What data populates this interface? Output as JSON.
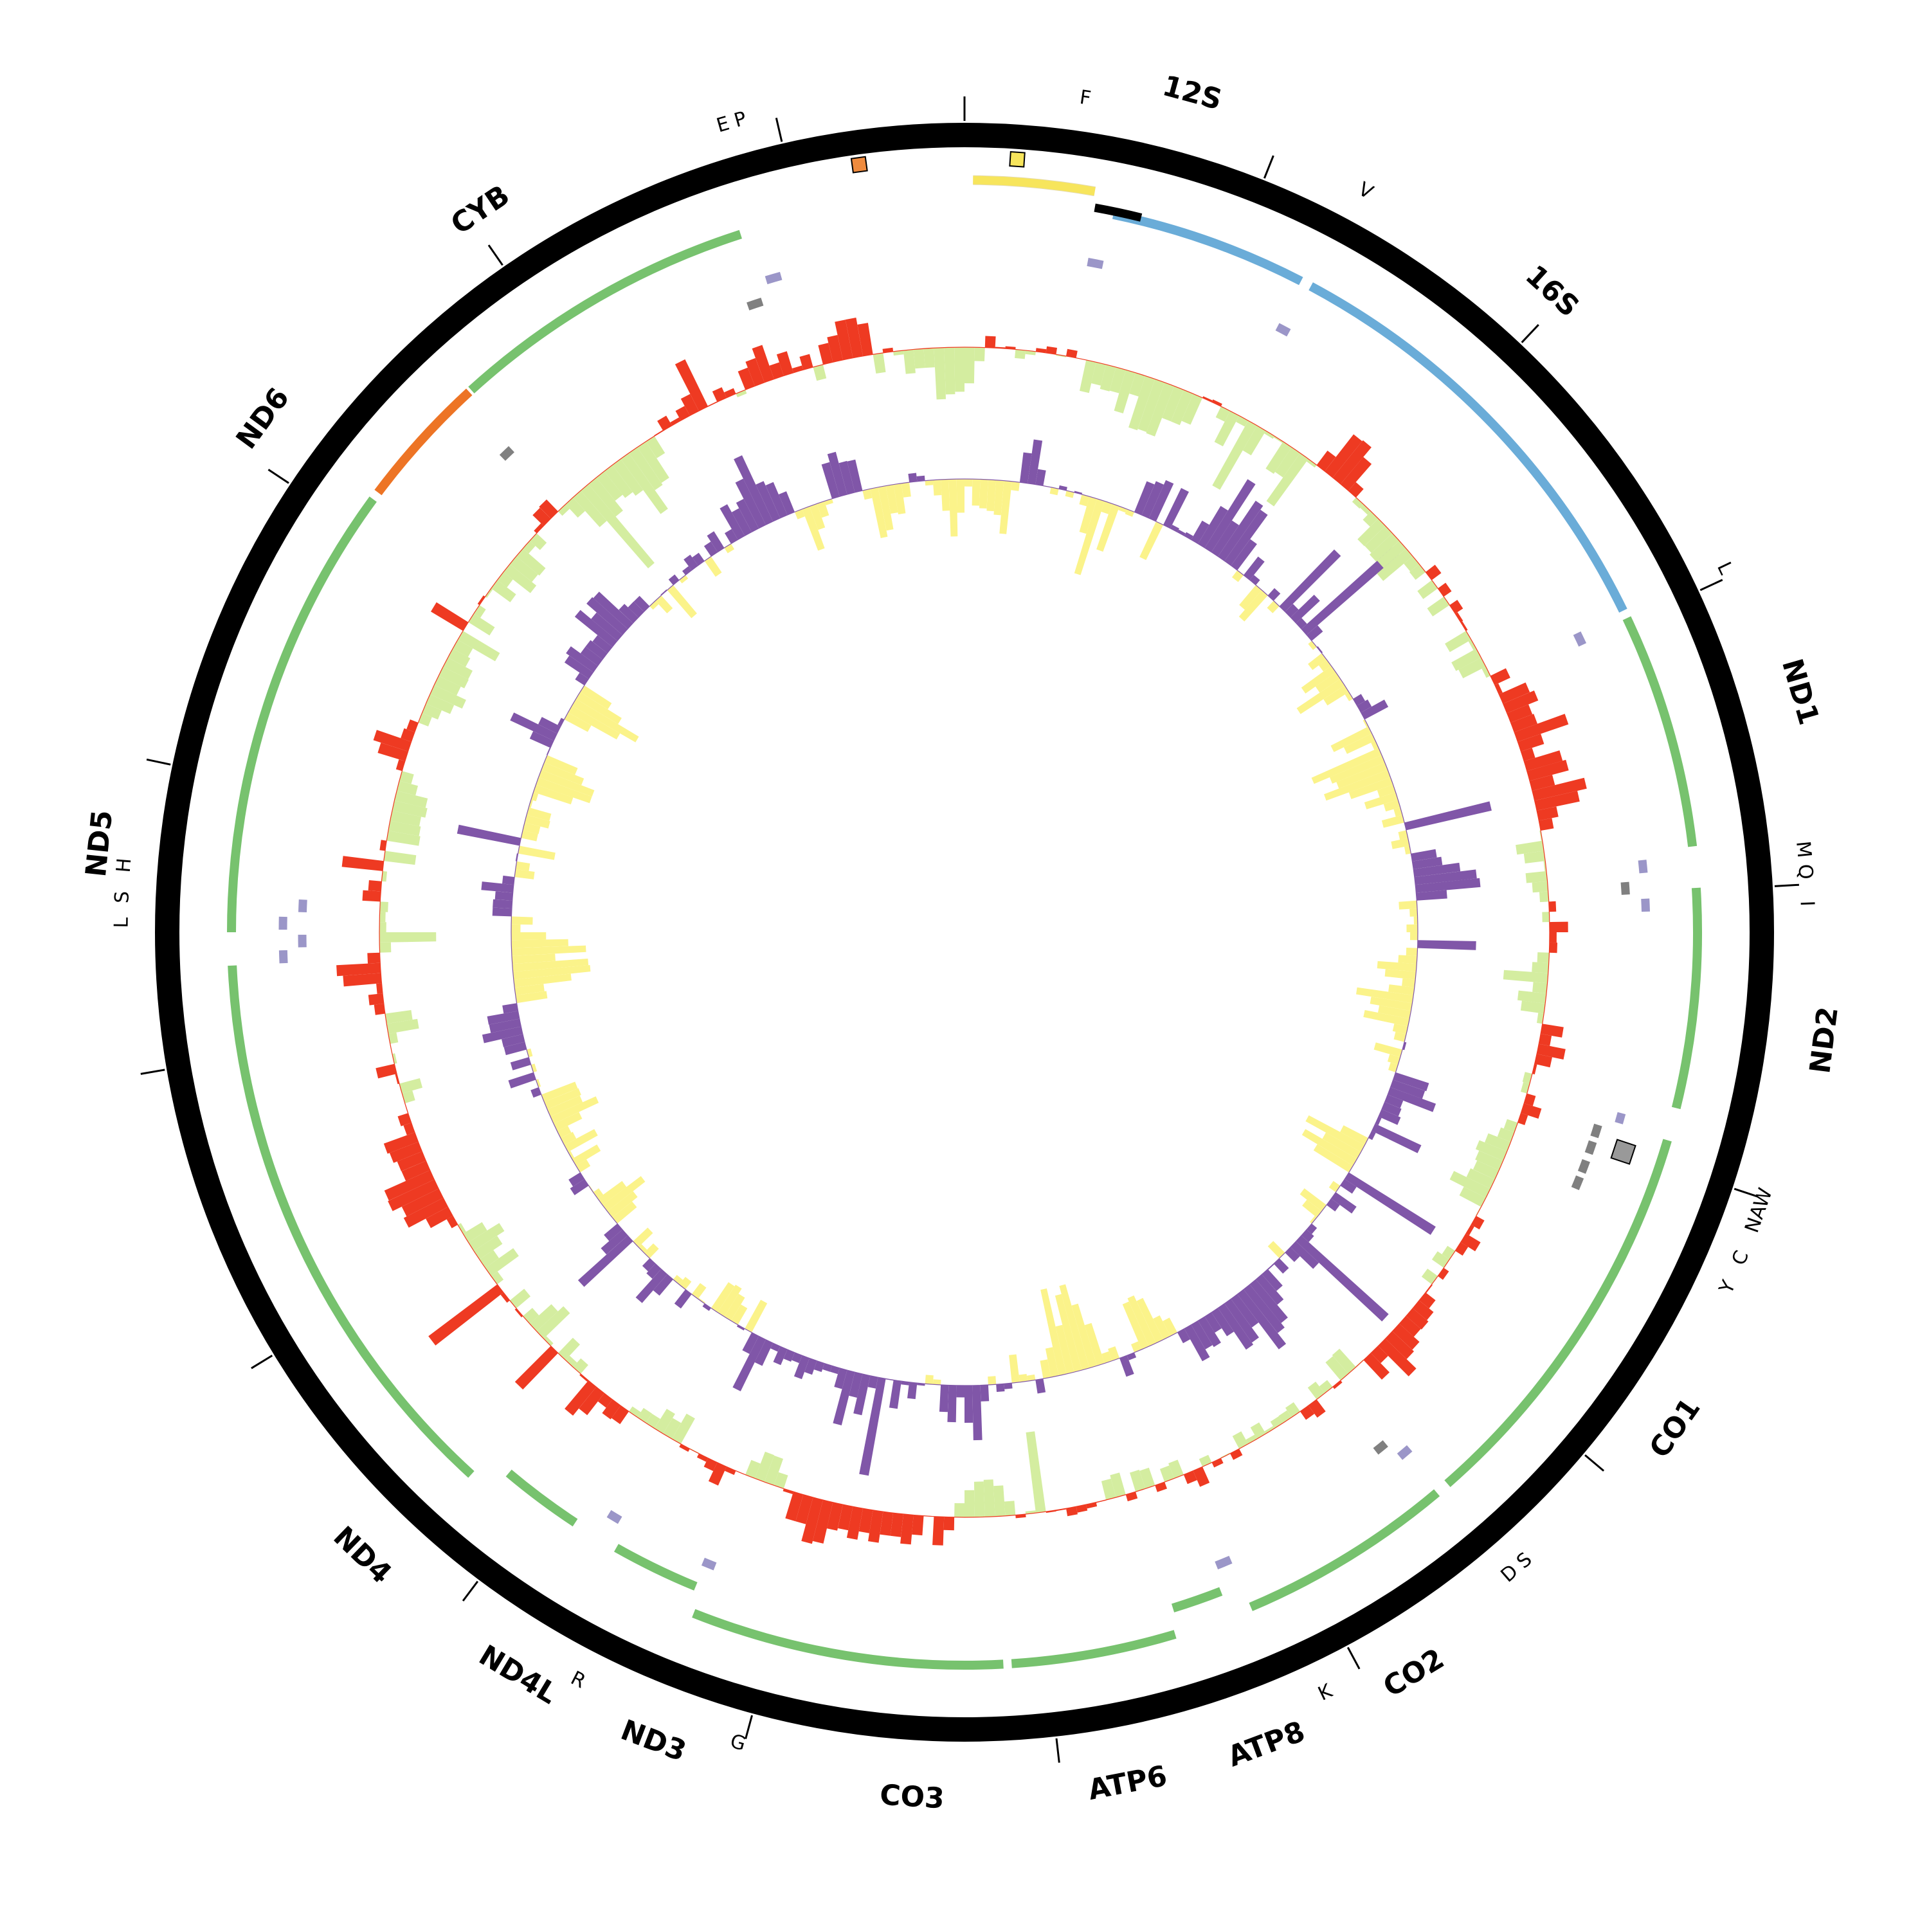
{
  "genome_length": 16600,
  "colors": {
    "outer_ring": "#000000",
    "protein_coding": "#77c26e",
    "rrna": "#6aacd8",
    "nd6": "#ed7425",
    "trna": "#9b96c8",
    "trna_alt": "#808080",
    "control_region": "#f7e55c",
    "control_dark": "#000000",
    "gc_skew_positive": "#ee3a22",
    "gc_skew_negative": "#d4eda0",
    "gc_content_high": "#8056a8",
    "gc_content_low": "#fbf38a",
    "origin_l": "#999999",
    "origin_marker_orange": "#ef8b3e",
    "origin_marker_yellow": "#f7e55c"
  },
  "gene_labels": [
    {
      "name": "CYB",
      "pos": 15040
    },
    {
      "name": "ND6",
      "pos": 14120
    },
    {
      "name": "ND5",
      "pos": 12720
    },
    {
      "name": "ND4",
      "pos": 10330
    },
    {
      "name": "ND4L",
      "pos": 9730
    },
    {
      "name": "ND3",
      "pos": 9270
    },
    {
      "name": "CO3",
      "pos": 8460
    },
    {
      "name": "ATP6",
      "pos": 7800
    },
    {
      "name": "ATP8",
      "pos": 7360
    },
    {
      "name": "CO2",
      "pos": 6860
    },
    {
      "name": "CO1",
      "pos": 5760
    },
    {
      "name": "ND2",
      "pos": 4480
    },
    {
      "name": "ND1",
      "pos": 3410
    },
    {
      "name": "16S",
      "pos": 1960
    },
    {
      "name": "12S",
      "pos": 700
    }
  ],
  "trna_labels": [
    {
      "name": "E P",
      "pos": 15860
    },
    {
      "name": "F",
      "pos": 380
    },
    {
      "name": "V",
      "pos": 1310
    },
    {
      "name": "L",
      "pos": 2970
    },
    {
      "name": "M",
      "pos": 3890
    },
    {
      "name": "Q",
      "pos": 3960
    },
    {
      "name": "I",
      "pos": 4060
    },
    {
      "name": "NAW",
      "pos": 5040
    },
    {
      "name": "C",
      "pos": 5200
    },
    {
      "name": "Y",
      "pos": 5300
    },
    {
      "name": "D S",
      "pos": 6410
    },
    {
      "name": "K",
      "pos": 7130
    },
    {
      "name": "G",
      "pos": 9020
    },
    {
      "name": "R",
      "pos": 9560
    },
    {
      "name": "L",
      "pos": 12480
    },
    {
      "name": "S",
      "pos": 12560
    },
    {
      "name": "H",
      "pos": 12660
    }
  ],
  "tick_positions": [
    0,
    1000,
    2000,
    3000,
    4000,
    5000,
    6000,
    7000,
    8000,
    9000,
    10000,
    11000,
    12000,
    13000,
    14000,
    15000,
    16000
  ],
  "gene_arcs": [
    {
      "name": "CYB",
      "start": 14650,
      "end": 15780,
      "ring": "outer",
      "type": "protein_coding"
    },
    {
      "name": "ND6",
      "start": 14150,
      "end": 14640,
      "ring": "outer",
      "type": "nd6"
    },
    {
      "name": "ND5",
      "start": 12450,
      "end": 14120,
      "ring": "outer",
      "type": "protein_coding"
    },
    {
      "name": "ND4",
      "start": 10250,
      "end": 12330,
      "ring": "outer",
      "type": "protein_coding"
    },
    {
      "name": "ND4L",
      "start": 9840,
      "end": 10150,
      "ring": "inner",
      "type": "protein_coding"
    },
    {
      "name": "ND3",
      "start": 9330,
      "end": 9660,
      "ring": "inner",
      "type": "protein_coding"
    },
    {
      "name": "CO3",
      "start": 8160,
      "end": 9300,
      "ring": "outer",
      "type": "protein_coding"
    },
    {
      "name": "ATP6",
      "start": 7530,
      "end": 8130,
      "ring": "outer",
      "type": "protein_coding"
    },
    {
      "name": "ATP8",
      "start": 7320,
      "end": 7510,
      "ring": "inner",
      "type": "protein_coding"
    },
    {
      "name": "CO2",
      "start": 6450,
      "end": 7240,
      "ring": "outer",
      "type": "protein_coding"
    },
    {
      "name": "CO1",
      "start": 4910,
      "end": 6400,
      "ring": "outer",
      "type": "protein_coding"
    },
    {
      "name": "ND2",
      "start": 3990,
      "end": 4790,
      "ring": "outer",
      "type": "protein_coding"
    },
    {
      "name": "ND1",
      "start": 2980,
      "end": 3840,
      "ring": "outer",
      "type": "protein_coding"
    },
    {
      "name": "16S",
      "start": 1300,
      "end": 2950,
      "ring": "outer",
      "type": "rrna"
    },
    {
      "name": "12S",
      "start": 540,
      "end": 1260,
      "ring": "outer",
      "type": "rrna"
    }
  ],
  "trna_marks": [
    {
      "start": 15820,
      "end": 15880,
      "ring": "inner",
      "type": "trna"
    },
    {
      "start": 15720,
      "end": 15780,
      "ring": "inner2",
      "type": "trna_alt"
    },
    {
      "start": 14560,
      "end": 14610,
      "ring": "inner2",
      "type": "trna_alt"
    },
    {
      "start": 480,
      "end": 540,
      "ring": "inner",
      "type": "trna"
    },
    {
      "start": 1260,
      "end": 1310,
      "ring": "inner",
      "type": "trna"
    },
    {
      "start": 2950,
      "end": 3000,
      "ring": "inner",
      "type": "trna"
    },
    {
      "start": 3870,
      "end": 3920,
      "ring": "inner",
      "type": "trna"
    },
    {
      "start": 3950,
      "end": 4000,
      "ring": "inner2",
      "type": "trna_alt"
    },
    {
      "start": 4020,
      "end": 4070,
      "ring": "inner",
      "type": "trna"
    },
    {
      "start": 4860,
      "end": 4900,
      "ring": "inner",
      "type": "trna"
    },
    {
      "start": 4930,
      "end": 4980,
      "ring": "inner2",
      "type": "trna_alt"
    },
    {
      "start": 5000,
      "end": 5050,
      "ring": "inner2",
      "type": "trna_alt"
    },
    {
      "start": 5080,
      "end": 5130,
      "ring": "inner2",
      "type": "trna_alt"
    },
    {
      "start": 5150,
      "end": 5200,
      "ring": "inner2",
      "type": "trna_alt"
    },
    {
      "start": 6420,
      "end": 6470,
      "ring": "inner",
      "type": "trna"
    },
    {
      "start": 6480,
      "end": 6530,
      "ring": "inner2",
      "type": "trna_alt"
    },
    {
      "start": 7240,
      "end": 7300,
      "ring": "inner",
      "type": "trna"
    },
    {
      "start": 9290,
      "end": 9340,
      "ring": "inner",
      "type": "trna"
    },
    {
      "start": 9700,
      "end": 9750,
      "ring": "inner",
      "type": "trna"
    },
    {
      "start": 12330,
      "end": 12380,
      "ring": "inner",
      "type": "trna"
    },
    {
      "start": 12390,
      "end": 12440,
      "ring": "inner2",
      "type": "trna"
    },
    {
      "start": 12460,
      "end": 12510,
      "ring": "inner",
      "type": "trna"
    },
    {
      "start": 12530,
      "end": 12580,
      "ring": "inner2",
      "type": "trna"
    }
  ],
  "control_arcs": [
    {
      "start": 30,
      "end": 460,
      "type": "control_region"
    },
    {
      "start": 470,
      "end": 640,
      "type": "control_dark"
    }
  ],
  "origin_boxes": [
    {
      "pos": 16240,
      "type": "origin_marker_orange"
    },
    {
      "pos": 180,
      "type": "origin_marker_yellow"
    },
    {
      "pos": 5000,
      "type": "origin_l"
    }
  ]
}
